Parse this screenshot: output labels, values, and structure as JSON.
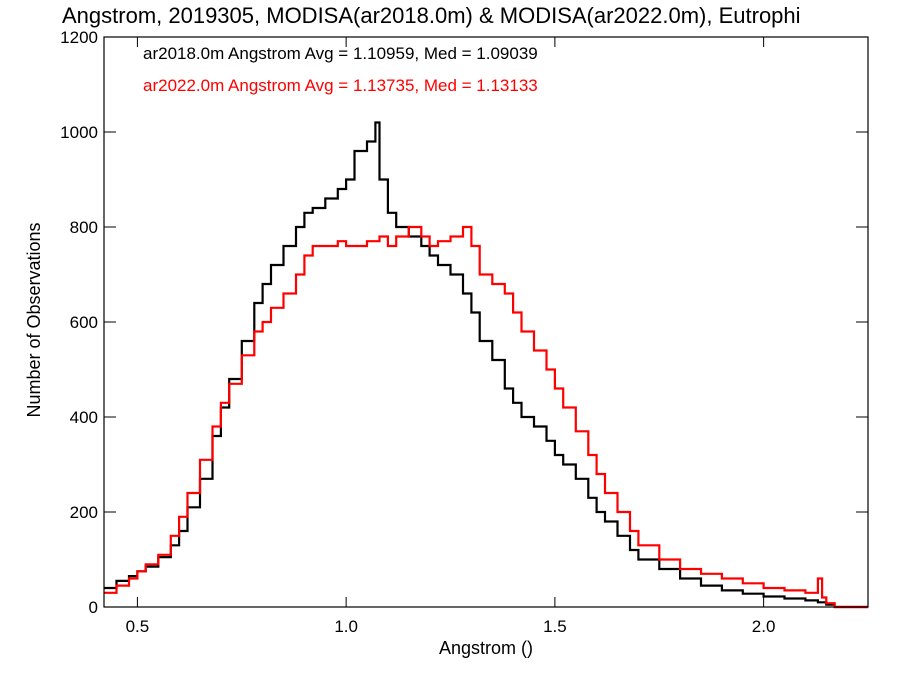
{
  "chart_data": {
    "type": "histogram",
    "title": "Angstrom, 2019305, MODISA(ar2018.0m) & MODISA(ar2022.0m), Eutrophi",
    "xlabel": "Angstrom ()",
    "ylabel": "Number of Observations",
    "xlim": [
      0.42,
      2.25
    ],
    "ylim": [
      0,
      1200
    ],
    "x_ticks": [
      {
        "value": 0.5,
        "label": "0.5"
      },
      {
        "value": 1.0,
        "label": "1.0"
      },
      {
        "value": 1.5,
        "label": "1.5"
      },
      {
        "value": 2.0,
        "label": "2.0"
      }
    ],
    "y_ticks": [
      {
        "value": 0,
        "label": "0"
      },
      {
        "value": 200,
        "label": "200"
      },
      {
        "value": 400,
        "label": "400"
      },
      {
        "value": 600,
        "label": "600"
      },
      {
        "value": 800,
        "label": "800"
      },
      {
        "value": 1000,
        "label": "1000"
      },
      {
        "value": 1200,
        "label": "1200"
      }
    ],
    "grid": false,
    "series": [
      {
        "name": "ar2018.0m",
        "color": "#000000",
        "stats_text": "ar2018.0m Angstrom Avg = 1.10959, Med = 1.09039",
        "x": [
          0.42,
          0.45,
          0.48,
          0.5,
          0.52,
          0.55,
          0.58,
          0.6,
          0.62,
          0.65,
          0.68,
          0.7,
          0.72,
          0.75,
          0.78,
          0.8,
          0.82,
          0.85,
          0.88,
          0.9,
          0.92,
          0.95,
          0.98,
          1.0,
          1.02,
          1.05,
          1.07,
          1.08,
          1.1,
          1.12,
          1.15,
          1.18,
          1.2,
          1.22,
          1.25,
          1.28,
          1.3,
          1.32,
          1.35,
          1.38,
          1.4,
          1.42,
          1.45,
          1.48,
          1.5,
          1.52,
          1.55,
          1.58,
          1.6,
          1.62,
          1.65,
          1.68,
          1.7,
          1.75,
          1.8,
          1.85,
          1.9,
          1.95,
          2.0,
          2.05,
          2.1,
          2.13,
          2.15,
          2.17
        ],
        "values": [
          40,
          55,
          65,
          75,
          85,
          105,
          130,
          160,
          210,
          270,
          360,
          420,
          480,
          560,
          640,
          680,
          720,
          760,
          800,
          830,
          840,
          860,
          880,
          900,
          960,
          980,
          1020,
          900,
          830,
          800,
          780,
          760,
          740,
          720,
          700,
          660,
          620,
          560,
          520,
          460,
          430,
          400,
          380,
          350,
          320,
          300,
          270,
          230,
          200,
          180,
          150,
          120,
          100,
          80,
          60,
          45,
          35,
          28,
          22,
          18,
          14,
          10,
          5,
          0
        ]
      },
      {
        "name": "ar2022.0m",
        "color": "#ff0000",
        "stats_text": "ar2022.0m Angstrom Avg = 1.13735, Med = 1.13133",
        "x": [
          0.42,
          0.45,
          0.48,
          0.5,
          0.52,
          0.55,
          0.58,
          0.6,
          0.62,
          0.65,
          0.68,
          0.7,
          0.72,
          0.75,
          0.78,
          0.8,
          0.82,
          0.85,
          0.88,
          0.9,
          0.92,
          0.95,
          0.98,
          1.0,
          1.02,
          1.05,
          1.08,
          1.1,
          1.12,
          1.15,
          1.18,
          1.2,
          1.22,
          1.25,
          1.28,
          1.3,
          1.32,
          1.35,
          1.38,
          1.4,
          1.42,
          1.45,
          1.48,
          1.5,
          1.52,
          1.55,
          1.58,
          1.6,
          1.62,
          1.65,
          1.68,
          1.7,
          1.75,
          1.8,
          1.85,
          1.9,
          1.95,
          2.0,
          2.05,
          2.1,
          2.13,
          2.14,
          2.15,
          2.17
        ],
        "values": [
          30,
          45,
          60,
          75,
          90,
          110,
          150,
          190,
          240,
          310,
          380,
          430,
          470,
          530,
          580,
          600,
          630,
          660,
          700,
          740,
          760,
          760,
          770,
          760,
          760,
          770,
          780,
          760,
          780,
          800,
          780,
          760,
          770,
          780,
          800,
          760,
          700,
          680,
          660,
          620,
          580,
          540,
          500,
          460,
          420,
          370,
          320,
          280,
          240,
          200,
          160,
          130,
          100,
          80,
          70,
          60,
          50,
          40,
          35,
          30,
          60,
          20,
          8,
          0
        ]
      }
    ]
  }
}
